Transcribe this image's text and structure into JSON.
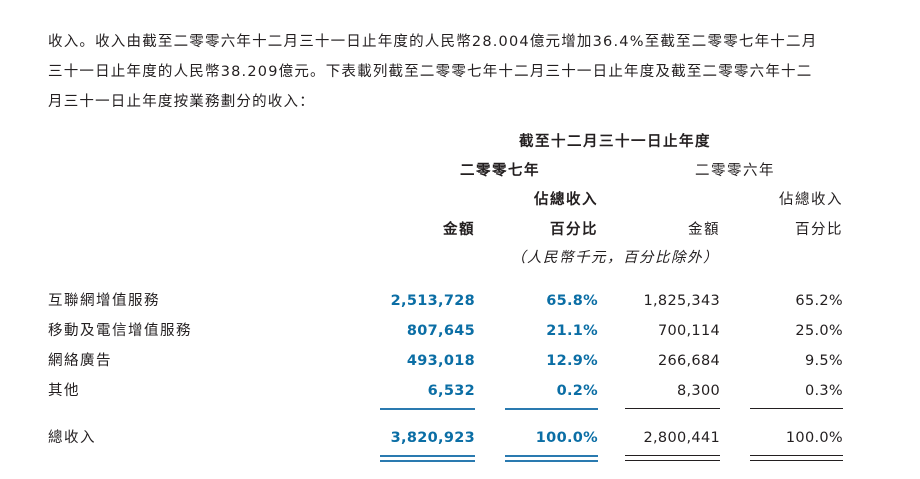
{
  "paragraph": [
    "收入。收入由截至二零零六年十二月三十一日止年度的人民幣28.004億元增加36.4%至截至二零零七年十二月",
    "三十一日止年度的人民幣38.209億元。下表載列截至二零零七年十二月三十一日止年度及截至二零零六年十二",
    "月三十一日止年度按業務劃分的收入："
  ],
  "table": {
    "header": {
      "period": "截至十二月三十一日止年度",
      "year_2007": "二零零七年",
      "year_2006": "二零零六年",
      "share_2007": "佔總收入",
      "share_2006": "佔總收入",
      "columns": [
        "金額",
        "百分比",
        "金額",
        "百分比"
      ],
      "unit": "（人民幣千元，百分比除外）"
    },
    "rows": [
      {
        "label": "互聯網增值服務",
        "values": [
          "2,513,728",
          "65.8%",
          "1,825,343",
          "65.2%"
        ]
      },
      {
        "label": "移動及電信增值服務",
        "values": [
          "807,645",
          "21.1%",
          "700,114",
          "25.0%"
        ]
      },
      {
        "label": "網絡廣告",
        "values": [
          "493,018",
          "12.9%",
          "266,684",
          "9.5%"
        ]
      },
      {
        "label": "其他",
        "values": [
          "6,532",
          "0.2%",
          "8,300",
          "0.3%"
        ]
      }
    ],
    "total": {
      "label": "總收入",
      "values": [
        "3,820,923",
        "100.0%",
        "2,800,441",
        "100.0%"
      ]
    }
  }
}
